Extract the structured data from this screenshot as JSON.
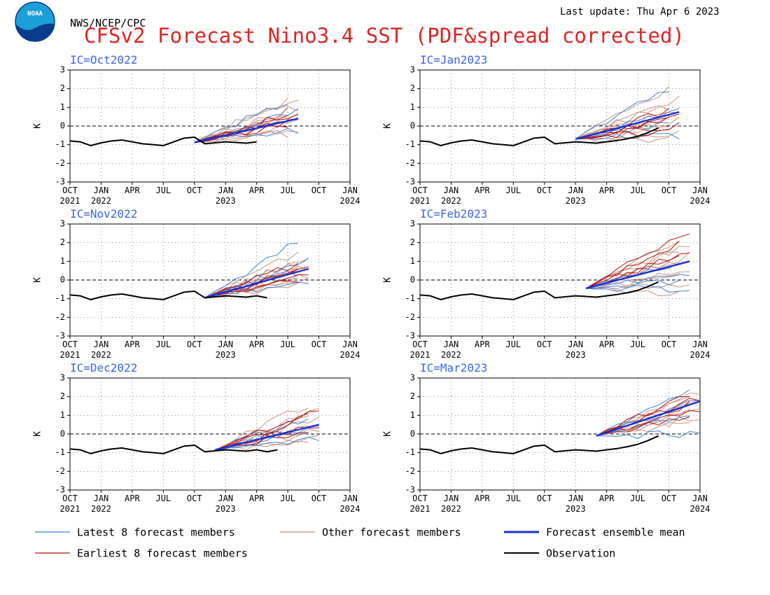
{
  "header": {
    "agency": "NWS/NCEP/CPC",
    "title": "CFSv2 Forecast Nino3.4 SST (PDF&spread corrected)",
    "last_update": "Last update: Thu Apr 6 2023",
    "logo_text": "NOAA"
  },
  "colors": {
    "title": "#dc2626",
    "ic_label": "#3a66e0",
    "latest": "#3f7fd9",
    "other": "#c9937f",
    "earliest": "#b31212",
    "mean": "#1530d8",
    "observation": "#000000",
    "axis": "#000000",
    "grid": "#8a8a8a"
  },
  "legend": {
    "latest": "Latest 8 forecast members",
    "other": "Other forecast members",
    "mean": "Forecast ensemble mean",
    "earliest": "Earliest 8 forecast members",
    "observation": "Observation"
  },
  "chart_data": [
    {
      "type": "line",
      "ic_label": "IC=Oct2022",
      "ylabel": "K",
      "ylim": [
        -3,
        3
      ],
      "yticks": [
        -3,
        -2,
        -1,
        0,
        1,
        2,
        3
      ],
      "x_ticks": [
        {
          "top": "OCT",
          "bottom": "2021"
        },
        {
          "top": "JAN",
          "bottom": "2022"
        },
        {
          "top": "APR",
          "bottom": ""
        },
        {
          "top": "JUL",
          "bottom": ""
        },
        {
          "top": "OCT",
          "bottom": ""
        },
        {
          "top": "JAN",
          "bottom": "2023"
        },
        {
          "top": "APR",
          "bottom": ""
        },
        {
          "top": "JUL",
          "bottom": ""
        },
        {
          "top": "OCT",
          "bottom": ""
        },
        {
          "top": "JAN",
          "bottom": "2024"
        }
      ],
      "grid": true,
      "observation": {
        "start": "2021-10",
        "values": [
          -0.8,
          -0.85,
          -1.05,
          -0.9,
          -0.8,
          -0.75,
          -0.85,
          -0.95,
          -1.0,
          -1.05,
          -0.85,
          -0.65,
          -0.6,
          -0.95,
          -0.9,
          -0.85,
          -0.88,
          -0.92,
          -0.85
        ]
      },
      "forecast": {
        "start": "2022-10",
        "start_value": -0.88,
        "latest_end": [
          -0.2,
          0.3,
          0.8,
          1.25
        ],
        "other_end": [
          -0.4,
          -0.2,
          0.0,
          0.2,
          0.4,
          0.6,
          0.8,
          1.0,
          1.3,
          1.5
        ],
        "earliest_end": [
          0.1,
          0.3,
          0.5,
          0.7
        ],
        "mean_end": 0.4,
        "months": [
          9,
          10
        ]
      }
    },
    {
      "type": "line",
      "ic_label": "IC=Jan2023",
      "ylabel": "K",
      "ylim": [
        -3,
        3
      ],
      "yticks": [
        -3,
        -2,
        -1,
        0,
        1,
        2,
        3
      ],
      "x_ticks": [
        {
          "top": "OCT",
          "bottom": "2021"
        },
        {
          "top": "JAN",
          "bottom": "2022"
        },
        {
          "top": "APR",
          "bottom": ""
        },
        {
          "top": "JUL",
          "bottom": ""
        },
        {
          "top": "OCT",
          "bottom": ""
        },
        {
          "top": "JAN",
          "bottom": "2023"
        },
        {
          "top": "APR",
          "bottom": ""
        },
        {
          "top": "JUL",
          "bottom": ""
        },
        {
          "top": "OCT",
          "bottom": ""
        },
        {
          "top": "JAN",
          "bottom": "2024"
        }
      ],
      "grid": true,
      "observation": {
        "start": "2021-10",
        "values": [
          -0.8,
          -0.85,
          -1.05,
          -0.9,
          -0.8,
          -0.75,
          -0.85,
          -0.95,
          -1.0,
          -1.05,
          -0.85,
          -0.65,
          -0.6,
          -0.95,
          -0.9,
          -0.85,
          -0.88,
          -0.92,
          -0.85,
          -0.78,
          -0.68,
          -0.55,
          -0.35,
          -0.1
        ]
      },
      "forecast": {
        "start": "2023-01",
        "start_value": -0.7,
        "latest_end": [
          -0.6,
          0.2,
          0.9,
          1.9
        ],
        "other_end": [
          -0.8,
          -0.3,
          0.0,
          0.3,
          0.5,
          0.8,
          1.1,
          1.5,
          2.0
        ],
        "earliest_end": [
          -0.3,
          0.0,
          0.3,
          0.6,
          0.8
        ],
        "mean_end": 0.75,
        "months": [
          9,
          10
        ]
      }
    },
    {
      "type": "line",
      "ic_label": "IC=Nov2022",
      "ylabel": "K",
      "ylim": [
        -3,
        3
      ],
      "yticks": [
        -3,
        -2,
        -1,
        0,
        1,
        2,
        3
      ],
      "x_ticks": [
        {
          "top": "OCT",
          "bottom": "2021"
        },
        {
          "top": "JAN",
          "bottom": "2022"
        },
        {
          "top": "APR",
          "bottom": ""
        },
        {
          "top": "JUL",
          "bottom": ""
        },
        {
          "top": "OCT",
          "bottom": ""
        },
        {
          "top": "JAN",
          "bottom": "2023"
        },
        {
          "top": "APR",
          "bottom": ""
        },
        {
          "top": "JUL",
          "bottom": ""
        },
        {
          "top": "OCT",
          "bottom": ""
        },
        {
          "top": "JAN",
          "bottom": "2024"
        }
      ],
      "grid": true,
      "observation": {
        "start": "2021-10",
        "values": [
          -0.8,
          -0.85,
          -1.05,
          -0.9,
          -0.8,
          -0.75,
          -0.85,
          -0.95,
          -1.0,
          -1.05,
          -0.85,
          -0.65,
          -0.6,
          -0.95,
          -0.9,
          -0.85,
          -0.88,
          -0.92,
          -0.85,
          -0.95
        ]
      },
      "forecast": {
        "start": "2022-11",
        "start_value": -0.95,
        "latest_end": [
          -0.1,
          0.4,
          1.0,
          2.05
        ],
        "other_end": [
          -0.3,
          -0.1,
          0.1,
          0.3,
          0.5,
          0.7,
          0.9,
          1.2,
          1.5
        ],
        "earliest_end": [
          0.0,
          0.2,
          0.4,
          0.7,
          0.9
        ],
        "mean_end": 0.6,
        "months": [
          9,
          10
        ]
      }
    },
    {
      "type": "line",
      "ic_label": "IC=Feb2023",
      "ylabel": "K",
      "ylim": [
        -3,
        3
      ],
      "yticks": [
        -3,
        -2,
        -1,
        0,
        1,
        2,
        3
      ],
      "x_ticks": [
        {
          "top": "OCT",
          "bottom": "2021"
        },
        {
          "top": "JAN",
          "bottom": "2022"
        },
        {
          "top": "APR",
          "bottom": ""
        },
        {
          "top": "JUL",
          "bottom": ""
        },
        {
          "top": "OCT",
          "bottom": ""
        },
        {
          "top": "JAN",
          "bottom": "2023"
        },
        {
          "top": "APR",
          "bottom": ""
        },
        {
          "top": "JUL",
          "bottom": ""
        },
        {
          "top": "OCT",
          "bottom": ""
        },
        {
          "top": "JAN",
          "bottom": "2024"
        }
      ],
      "grid": true,
      "observation": {
        "start": "2021-10",
        "values": [
          -0.8,
          -0.85,
          -1.05,
          -0.9,
          -0.8,
          -0.75,
          -0.85,
          -0.95,
          -1.0,
          -1.05,
          -0.85,
          -0.65,
          -0.6,
          -0.95,
          -0.9,
          -0.85,
          -0.88,
          -0.92,
          -0.85,
          -0.78,
          -0.68,
          -0.55,
          -0.35,
          -0.1
        ]
      },
      "forecast": {
        "start": "2023-02",
        "start_value": -0.45,
        "latest_end": [
          -0.5,
          -0.1,
          0.4,
          1.0
        ],
        "other_end": [
          -0.7,
          -0.2,
          0.2,
          0.6,
          1.0,
          1.3,
          1.6,
          2.0,
          2.2
        ],
        "earliest_end": [
          1.2,
          1.5,
          1.9,
          2.5
        ],
        "mean_end": 1.0,
        "months": [
          9,
          10
        ]
      }
    },
    {
      "type": "line",
      "ic_label": "IC=Dec2022",
      "ylabel": "K",
      "ylim": [
        -3,
        3
      ],
      "yticks": [
        -3,
        -2,
        -1,
        0,
        1,
        2,
        3
      ],
      "x_ticks": [
        {
          "top": "OCT",
          "bottom": "2021"
        },
        {
          "top": "JAN",
          "bottom": "2022"
        },
        {
          "top": "APR",
          "bottom": ""
        },
        {
          "top": "JUL",
          "bottom": ""
        },
        {
          "top": "OCT",
          "bottom": ""
        },
        {
          "top": "JAN",
          "bottom": "2023"
        },
        {
          "top": "APR",
          "bottom": ""
        },
        {
          "top": "JUL",
          "bottom": ""
        },
        {
          "top": "OCT",
          "bottom": ""
        },
        {
          "top": "JAN",
          "bottom": "2024"
        }
      ],
      "grid": true,
      "observation": {
        "start": "2021-10",
        "values": [
          -0.8,
          -0.85,
          -1.05,
          -0.9,
          -0.8,
          -0.75,
          -0.85,
          -0.95,
          -1.0,
          -1.05,
          -0.85,
          -0.65,
          -0.6,
          -0.95,
          -0.9,
          -0.85,
          -0.88,
          -0.92,
          -0.85,
          -0.95,
          -0.85
        ]
      },
      "forecast": {
        "start": "2022-12",
        "start_value": -0.85,
        "latest_end": [
          -0.3,
          0.1,
          0.5,
          0.9
        ],
        "other_end": [
          -0.5,
          -0.2,
          0.0,
          0.2,
          0.5,
          0.8,
          1.0,
          1.3,
          1.6
        ],
        "earliest_end": [
          0.2,
          0.5,
          0.9,
          1.3
        ],
        "mean_end": 0.5,
        "months": [
          9,
          10
        ]
      }
    },
    {
      "type": "line",
      "ic_label": "IC=Mar2023",
      "ylabel": "K",
      "ylim": [
        -3,
        3
      ],
      "yticks": [
        -3,
        -2,
        -1,
        0,
        1,
        2,
        3
      ],
      "x_ticks": [
        {
          "top": "OCT",
          "bottom": "2021"
        },
        {
          "top": "JAN",
          "bottom": "2022"
        },
        {
          "top": "APR",
          "bottom": ""
        },
        {
          "top": "JUL",
          "bottom": ""
        },
        {
          "top": "OCT",
          "bottom": ""
        },
        {
          "top": "JAN",
          "bottom": "2023"
        },
        {
          "top": "APR",
          "bottom": ""
        },
        {
          "top": "JUL",
          "bottom": ""
        },
        {
          "top": "OCT",
          "bottom": ""
        },
        {
          "top": "JAN",
          "bottom": "2024"
        }
      ],
      "grid": true,
      "observation": {
        "start": "2021-10",
        "values": [
          -0.8,
          -0.85,
          -1.05,
          -0.9,
          -0.8,
          -0.75,
          -0.85,
          -0.95,
          -1.0,
          -1.05,
          -0.85,
          -0.65,
          -0.6,
          -0.95,
          -0.9,
          -0.85,
          -0.88,
          -0.92,
          -0.85,
          -0.78,
          -0.68,
          -0.55,
          -0.35,
          -0.1
        ]
      },
      "forecast": {
        "start": "2023-03",
        "start_value": -0.1,
        "latest_end": [
          0.0,
          1.0,
          1.8,
          2.3
        ],
        "other_end": [
          0.6,
          0.9,
          1.2,
          1.4,
          1.6,
          1.8,
          2.0,
          2.2
        ],
        "earliest_end": [
          1.0,
          1.3,
          1.6,
          1.9,
          2.1
        ],
        "mean_end": 1.75,
        "months": [
          9,
          10
        ]
      }
    }
  ]
}
